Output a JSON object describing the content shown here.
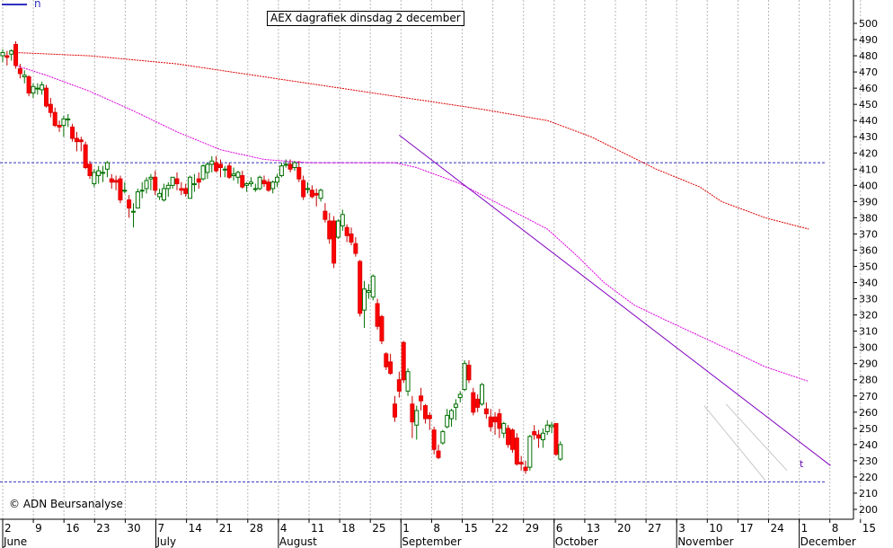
{
  "chart_data": {
    "type": "candlestick",
    "title": "AEX dagrafiek dinsdag 2 december",
    "ylim": [
      195,
      510
    ],
    "y_ticks": [
      200,
      210,
      220,
      230,
      240,
      250,
      260,
      270,
      280,
      290,
      300,
      310,
      320,
      330,
      340,
      350,
      360,
      370,
      380,
      390,
      400,
      410,
      420,
      430,
      440,
      450,
      460,
      470,
      480,
      490,
      500
    ],
    "x_ticks": [
      "2",
      "9",
      "16",
      "23",
      "30",
      "7",
      "14",
      "21",
      "28",
      "4",
      "11",
      "18",
      "25",
      "1",
      "8",
      "15",
      "22",
      "29",
      "6",
      "13",
      "20",
      "27",
      "3",
      "10",
      "17",
      "24",
      "1",
      "8",
      "15"
    ],
    "months": [
      "June",
      "July",
      "August",
      "September",
      "October",
      "November",
      "December"
    ],
    "horizontal_levels": [
      414,
      217
    ],
    "candles": [
      {
        "o": 480,
        "h": 484,
        "l": 476,
        "c": 482
      },
      {
        "o": 480,
        "h": 483,
        "l": 474,
        "c": 479
      },
      {
        "o": 481,
        "h": 484,
        "l": 477,
        "c": 483
      },
      {
        "o": 487,
        "h": 489,
        "l": 472,
        "c": 474
      },
      {
        "o": 472,
        "h": 475,
        "l": 466,
        "c": 469
      },
      {
        "o": 467,
        "h": 471,
        "l": 463,
        "c": 468
      },
      {
        "o": 467,
        "h": 468,
        "l": 455,
        "c": 457
      },
      {
        "o": 457,
        "h": 463,
        "l": 454,
        "c": 461
      },
      {
        "o": 460,
        "h": 463,
        "l": 456,
        "c": 460
      },
      {
        "o": 459,
        "h": 464,
        "l": 456,
        "c": 462
      },
      {
        "o": 460,
        "h": 462,
        "l": 448,
        "c": 449
      },
      {
        "o": 450,
        "h": 454,
        "l": 442,
        "c": 445
      },
      {
        "o": 445,
        "h": 448,
        "l": 436,
        "c": 437
      },
      {
        "o": 437,
        "h": 440,
        "l": 433,
        "c": 436
      },
      {
        "o": 437,
        "h": 443,
        "l": 430,
        "c": 441
      },
      {
        "o": 441,
        "h": 444,
        "l": 436,
        "c": 441
      },
      {
        "o": 436,
        "h": 438,
        "l": 427,
        "c": 429
      },
      {
        "o": 429,
        "h": 433,
        "l": 421,
        "c": 427
      },
      {
        "o": 428,
        "h": 430,
        "l": 421,
        "c": 427
      },
      {
        "o": 425,
        "h": 427,
        "l": 410,
        "c": 411
      },
      {
        "o": 413,
        "h": 415,
        "l": 404,
        "c": 406
      },
      {
        "o": 401,
        "h": 410,
        "l": 399,
        "c": 408
      },
      {
        "o": 406,
        "h": 412,
        "l": 401,
        "c": 409
      },
      {
        "o": 408,
        "h": 412,
        "l": 402,
        "c": 408
      },
      {
        "o": 410,
        "h": 415,
        "l": 405,
        "c": 414
      },
      {
        "o": 404,
        "h": 407,
        "l": 398,
        "c": 402
      },
      {
        "o": 403,
        "h": 406,
        "l": 397,
        "c": 402
      },
      {
        "o": 404,
        "h": 406,
        "l": 389,
        "c": 391
      },
      {
        "o": 397,
        "h": 402,
        "l": 395,
        "c": 397
      },
      {
        "o": 391,
        "h": 394,
        "l": 380,
        "c": 386
      },
      {
        "o": 384,
        "h": 389,
        "l": 374,
        "c": 384
      },
      {
        "o": 386,
        "h": 398,
        "l": 386,
        "c": 396
      },
      {
        "o": 397,
        "h": 402,
        "l": 392,
        "c": 397
      },
      {
        "o": 398,
        "h": 405,
        "l": 395,
        "c": 403
      },
      {
        "o": 404,
        "h": 407,
        "l": 397,
        "c": 405
      },
      {
        "o": 405,
        "h": 409,
        "l": 394,
        "c": 397
      },
      {
        "o": 393,
        "h": 398,
        "l": 391,
        "c": 395
      },
      {
        "o": 391,
        "h": 401,
        "l": 390,
        "c": 398
      },
      {
        "o": 398,
        "h": 402,
        "l": 393,
        "c": 400
      },
      {
        "o": 400,
        "h": 405,
        "l": 398,
        "c": 405
      },
      {
        "o": 404,
        "h": 408,
        "l": 397,
        "c": 401
      },
      {
        "o": 398,
        "h": 402,
        "l": 394,
        "c": 397
      },
      {
        "o": 398,
        "h": 401,
        "l": 393,
        "c": 395
      },
      {
        "o": 392,
        "h": 406,
        "l": 392,
        "c": 405
      },
      {
        "o": 401,
        "h": 407,
        "l": 396,
        "c": 401
      },
      {
        "o": 404,
        "h": 408,
        "l": 398,
        "c": 402
      },
      {
        "o": 404,
        "h": 413,
        "l": 403,
        "c": 412
      },
      {
        "o": 408,
        "h": 414,
        "l": 404,
        "c": 413
      },
      {
        "o": 413,
        "h": 418,
        "l": 408,
        "c": 415
      },
      {
        "o": 414,
        "h": 418,
        "l": 408,
        "c": 409
      },
      {
        "o": 413,
        "h": 416,
        "l": 405,
        "c": 411
      },
      {
        "o": 410,
        "h": 412,
        "l": 405,
        "c": 410
      },
      {
        "o": 412,
        "h": 414,
        "l": 404,
        "c": 405
      },
      {
        "o": 406,
        "h": 411,
        "l": 403,
        "c": 407
      },
      {
        "o": 405,
        "h": 409,
        "l": 401,
        "c": 408
      },
      {
        "o": 406,
        "h": 409,
        "l": 398,
        "c": 399
      },
      {
        "o": 400,
        "h": 402,
        "l": 396,
        "c": 401
      },
      {
        "o": 401,
        "h": 405,
        "l": 399,
        "c": 402
      },
      {
        "o": 398,
        "h": 401,
        "l": 396,
        "c": 398
      },
      {
        "o": 398,
        "h": 406,
        "l": 397,
        "c": 405
      },
      {
        "o": 403,
        "h": 406,
        "l": 399,
        "c": 401
      },
      {
        "o": 402,
        "h": 404,
        "l": 396,
        "c": 397
      },
      {
        "o": 398,
        "h": 403,
        "l": 395,
        "c": 402
      },
      {
        "o": 402,
        "h": 407,
        "l": 399,
        "c": 405
      },
      {
        "o": 406,
        "h": 414,
        "l": 405,
        "c": 412
      },
      {
        "o": 413,
        "h": 416,
        "l": 411,
        "c": 413
      },
      {
        "o": 413,
        "h": 416,
        "l": 408,
        "c": 410
      },
      {
        "o": 411,
        "h": 415,
        "l": 409,
        "c": 414
      },
      {
        "o": 411,
        "h": 415,
        "l": 402,
        "c": 404
      },
      {
        "o": 403,
        "h": 406,
        "l": 391,
        "c": 393
      },
      {
        "o": 398,
        "h": 402,
        "l": 395,
        "c": 398
      },
      {
        "o": 397,
        "h": 400,
        "l": 392,
        "c": 393
      },
      {
        "o": 395,
        "h": 398,
        "l": 387,
        "c": 394
      },
      {
        "o": 392,
        "h": 398,
        "l": 390,
        "c": 397
      },
      {
        "o": 384,
        "h": 389,
        "l": 377,
        "c": 379
      },
      {
        "o": 378,
        "h": 383,
        "l": 364,
        "c": 367
      },
      {
        "o": 378,
        "h": 381,
        "l": 349,
        "c": 352
      },
      {
        "o": 368,
        "h": 379,
        "l": 367,
        "c": 378
      },
      {
        "o": 375,
        "h": 385,
        "l": 372,
        "c": 382
      },
      {
        "o": 374,
        "h": 376,
        "l": 365,
        "c": 369
      },
      {
        "o": 370,
        "h": 374,
        "l": 363,
        "c": 365
      },
      {
        "o": 364,
        "h": 368,
        "l": 356,
        "c": 358
      },
      {
        "o": 353,
        "h": 354,
        "l": 319,
        "c": 321
      },
      {
        "o": 323,
        "h": 341,
        "l": 312,
        "c": 336
      },
      {
        "o": 334,
        "h": 339,
        "l": 330,
        "c": 335
      },
      {
        "o": 331,
        "h": 345,
        "l": 329,
        "c": 344
      },
      {
        "o": 327,
        "h": 330,
        "l": 311,
        "c": 313
      },
      {
        "o": 319,
        "h": 320,
        "l": 302,
        "c": 304
      },
      {
        "o": 296,
        "h": 297,
        "l": 286,
        "c": 288
      },
      {
        "o": 291,
        "h": 296,
        "l": 283,
        "c": 284
      },
      {
        "o": 265,
        "h": 270,
        "l": 254,
        "c": 257
      },
      {
        "o": 280,
        "h": 285,
        "l": 269,
        "c": 273
      },
      {
        "o": 303,
        "h": 304,
        "l": 278,
        "c": 280
      },
      {
        "o": 273,
        "h": 287,
        "l": 270,
        "c": 285
      },
      {
        "o": 265,
        "h": 270,
        "l": 244,
        "c": 254
      },
      {
        "o": 252,
        "h": 264,
        "l": 243,
        "c": 261
      },
      {
        "o": 270,
        "h": 275,
        "l": 261,
        "c": 267
      },
      {
        "o": 264,
        "h": 265,
        "l": 253,
        "c": 256
      },
      {
        "o": 258,
        "h": 260,
        "l": 249,
        "c": 256
      },
      {
        "o": 249,
        "h": 251,
        "l": 234,
        "c": 237
      },
      {
        "o": 236,
        "h": 240,
        "l": 231,
        "c": 232
      },
      {
        "o": 241,
        "h": 249,
        "l": 240,
        "c": 248
      },
      {
        "o": 251,
        "h": 262,
        "l": 250,
        "c": 258
      },
      {
        "o": 256,
        "h": 262,
        "l": 251,
        "c": 261
      },
      {
        "o": 263,
        "h": 268,
        "l": 255,
        "c": 265
      },
      {
        "o": 269,
        "h": 273,
        "l": 266,
        "c": 271
      },
      {
        "o": 274,
        "h": 292,
        "l": 273,
        "c": 290
      },
      {
        "o": 289,
        "h": 292,
        "l": 278,
        "c": 280
      },
      {
        "o": 272,
        "h": 275,
        "l": 258,
        "c": 260
      },
      {
        "o": 268,
        "h": 271,
        "l": 260,
        "c": 263
      },
      {
        "o": 265,
        "h": 278,
        "l": 264,
        "c": 277
      },
      {
        "o": 262,
        "h": 266,
        "l": 256,
        "c": 259
      },
      {
        "o": 257,
        "h": 262,
        "l": 248,
        "c": 251
      },
      {
        "o": 257,
        "h": 260,
        "l": 246,
        "c": 254
      },
      {
        "o": 259,
        "h": 262,
        "l": 244,
        "c": 250
      },
      {
        "o": 247,
        "h": 254,
        "l": 244,
        "c": 253
      },
      {
        "o": 250,
        "h": 252,
        "l": 238,
        "c": 240
      },
      {
        "o": 249,
        "h": 250,
        "l": 235,
        "c": 237
      },
      {
        "o": 244,
        "h": 247,
        "l": 227,
        "c": 228
      },
      {
        "o": 229,
        "h": 233,
        "l": 224,
        "c": 228
      },
      {
        "o": 226,
        "h": 230,
        "l": 222,
        "c": 224
      },
      {
        "o": 226,
        "h": 246,
        "l": 224,
        "c": 245
      },
      {
        "o": 248,
        "h": 252,
        "l": 243,
        "c": 246
      },
      {
        "o": 246,
        "h": 249,
        "l": 238,
        "c": 244
      },
      {
        "o": 243,
        "h": 250,
        "l": 238,
        "c": 247
      },
      {
        "o": 248,
        "h": 255,
        "l": 246,
        "c": 252
      },
      {
        "o": 251,
        "h": 254,
        "l": 247,
        "c": 252
      },
      {
        "o": 253,
        "h": 253,
        "l": 233,
        "c": 234
      },
      {
        "o": 231,
        "h": 242,
        "l": 230,
        "c": 240
      }
    ],
    "moving_averages": [
      {
        "color": "#e00000",
        "points": [
          [
            3,
            482
          ],
          [
            20,
            480
          ],
          [
            40,
            475
          ],
          [
            55,
            469
          ],
          [
            70,
            463
          ],
          [
            90,
            455
          ],
          [
            110,
            447
          ],
          [
            125,
            440
          ],
          [
            135,
            430
          ],
          [
            150,
            410
          ],
          [
            160,
            399
          ],
          [
            165,
            390
          ],
          [
            175,
            380
          ],
          [
            185,
            373
          ]
        ]
      },
      {
        "color": "#e000e0",
        "points": [
          [
            3,
            474
          ],
          [
            10,
            468
          ],
          [
            20,
            458
          ],
          [
            30,
            446
          ],
          [
            40,
            433
          ],
          [
            50,
            422
          ],
          [
            60,
            416
          ],
          [
            70,
            414
          ],
          [
            78,
            414
          ],
          [
            90,
            414
          ],
          [
            95,
            411
          ],
          [
            105,
            401
          ],
          [
            115,
            387
          ],
          [
            125,
            373
          ],
          [
            132,
            356
          ],
          [
            138,
            340
          ],
          [
            145,
            326
          ],
          [
            152,
            317
          ],
          [
            160,
            307
          ],
          [
            168,
            297
          ],
          [
            175,
            288
          ],
          [
            185,
            279
          ]
        ]
      }
    ],
    "trendline": {
      "color": "#8000c0",
      "points": [
        [
          91,
          431
        ],
        [
          190,
          227
        ]
      ]
    },
    "channel_lines": [
      {
        "color": "#c8c8c8",
        "points": [
          [
            161,
            264
          ],
          [
            175,
            218
          ]
        ]
      },
      {
        "color": "#c8c8c8",
        "points": [
          [
            166,
            265
          ],
          [
            180,
            224
          ]
        ]
      }
    ],
    "trend_label": "t",
    "legend_label": "n"
  },
  "watermark": "© ADN Beursanalyse"
}
